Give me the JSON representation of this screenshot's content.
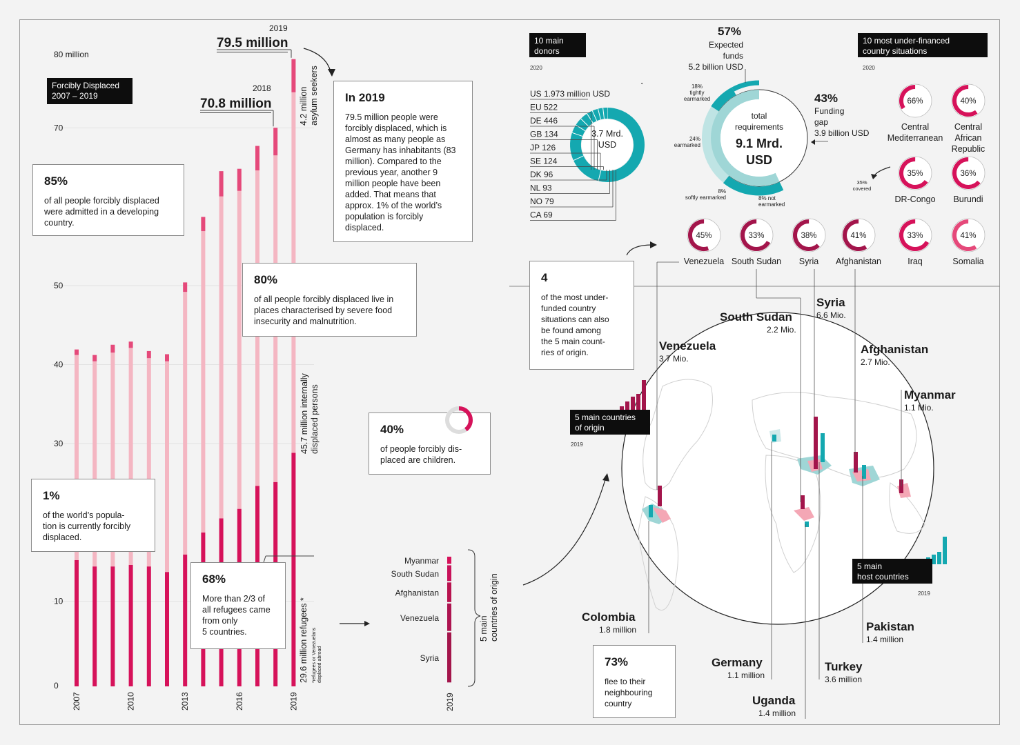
{
  "chart_data": [
    {
      "type": "bar",
      "title": "Forcibly Displaced 2007 – 2019",
      "categories": [
        "2007",
        "2008",
        "2009",
        "2010",
        "2011",
        "2012",
        "2013",
        "2014",
        "2015",
        "2016",
        "2017",
        "2018",
        "2019"
      ],
      "x_tick_labels": [
        "2007",
        "2010",
        "2013",
        "2016",
        "2019"
      ],
      "y_ticks": [
        "0",
        "10",
        "30",
        "40",
        "50",
        "70"
      ],
      "y_top_label": "80  million",
      "ylim": [
        0,
        80
      ],
      "series": [
        {
          "name": "refugees",
          "values": [
            16.0,
            15.2,
            15.2,
            15.4,
            15.2,
            14.5,
            16.7,
            19.5,
            21.3,
            22.5,
            25.4,
            25.9,
            29.6
          ]
        },
        {
          "name": "internally displaced persons",
          "values": [
            26.0,
            26.0,
            27.1,
            27.5,
            26.4,
            26.7,
            33.3,
            38.2,
            40.8,
            40.3,
            40.0,
            41.4,
            45.7
          ]
        },
        {
          "name": "asylum seekers",
          "values": [
            0.7,
            0.8,
            1.0,
            0.8,
            0.9,
            0.9,
            1.2,
            1.8,
            3.2,
            2.8,
            3.1,
            3.5,
            4.2
          ]
        }
      ]
    },
    {
      "type": "bar",
      "title": "5 main countries of origin",
      "categories": [
        "Myanmar",
        "South Sudan",
        "Afghanistan",
        "Venezuela",
        "Syria"
      ],
      "values": [
        1.1,
        2.2,
        2.7,
        3.7,
        6.6
      ],
      "xlabel": "2019"
    },
    {
      "type": "pie",
      "title": "10 main donors",
      "center_label": "3.7 Mrd. USD",
      "categories": [
        "US",
        "EU",
        "DE",
        "GB",
        "JP",
        "SE",
        "DK",
        "NL",
        "NO",
        "CA"
      ],
      "values": [
        1973,
        522,
        446,
        134,
        126,
        124,
        96,
        93,
        79,
        69
      ]
    },
    {
      "type": "pie",
      "title": "total requirements 9.1 Mrd. USD",
      "categories": [
        "18% tightly earmarked",
        "24% earmarked",
        "8% softly earmarked",
        "8% not earmarked",
        "Funding gap"
      ],
      "values": [
        18,
        24,
        8,
        8,
        43
      ]
    },
    {
      "type": "pie",
      "title": "10 most under-financed country situations",
      "categories": [
        "Central Mediterranean",
        "Central African Republic",
        "DR-Congo",
        "Burundi",
        "Venezuela",
        "South Sudan",
        "Syria",
        "Afghanistan",
        "Iraq",
        "Somalia"
      ],
      "values": [
        66,
        40,
        35,
        36,
        45,
        33,
        38,
        41,
        33,
        41
      ]
    }
  ],
  "colors": {
    "refugees": "#d6125a",
    "idp": "#f4b6c2",
    "asylum": "#e5497a",
    "teal": "#14a8b0",
    "teal_light": "#9fd6d6",
    "dark": "#0d0d0d",
    "maroon": "#a3154b",
    "pink_map": "#f4a7b5"
  },
  "left": {
    "title_tag": "Forcibly Displaced\n2007 – 2019",
    "y80": "80  million",
    "y_labels": [
      "70",
      "50",
      "40",
      "30",
      "10",
      "0"
    ],
    "x_labels": [
      "2007",
      "2010",
      "2013",
      "2016",
      "2019"
    ],
    "y2019": "2019",
    "total_2019": "79.5 million",
    "y2018": "2018",
    "total_2018": "70.8 million",
    "asylum_label": "4.2  million\nasylum seekers",
    "idp_label": "45.7 million internally\ndisplaced persons",
    "ref_label": "29.6 million refugees *",
    "ref_note": "*refugees or Venezuelans\ndisplaced abroad",
    "box85_big": "85%",
    "box85_txt": "of all people forcibly displaced were admitted in a developing country.",
    "box1_big": "1%",
    "box1_txt": "of the world’s popula-\ntion is currently forcibly\ndisplaced.",
    "box68_big": "68%",
    "box68_txt": "More than 2/3 of\nall refugees came\nfrom only\n5 countries.",
    "box80_big": "80%",
    "box80_txt": "of all people forcibly displaced live in places characterised by severe food insecurity and malnutrition.",
    "box2019_big": "In 2019",
    "box2019_txt": "79.5 million people were forcibly displaced, which is almost as many people as Germany has inhabitants (83 million). Compared to the previous year, another 9 million people have been added. That means that approx. 1% of the world’s population is forcibly displaced.",
    "box40_big": "40%",
    "box40_txt": "of people forcibly dis-\nplaced are children."
  },
  "origin": {
    "countries": [
      "Myanmar",
      "South Sudan",
      "Afghanistan",
      "Venezuela",
      "Syria"
    ],
    "year": "2019",
    "side_label": "5 main\ncountries of origin"
  },
  "donors": {
    "tag": "10 main\ndonors",
    "year": "2020",
    "center": "3.7 Mrd.\nUSD",
    "items": [
      "US 1.973 million USD",
      "EU 522",
      "DE 446",
      "GB 134",
      "JP 126",
      "SE 124",
      "DK 96",
      "NL 93",
      "NO 79",
      "CA 69"
    ]
  },
  "funding": {
    "pct57": "57%",
    "expected": "Expected\nfunds\n5.2 billion USD",
    "center_small": "total\nrequirements",
    "center_big": "9.1 Mrd.\nUSD",
    "pct43": "43%",
    "gap": "Funding\ngap\n3.9 billion USD",
    "tight": "18%\ntightly\nearmarked",
    "earm": "24%\nearmarked",
    "soft": "8%\nsoftly earmarked",
    "notearm": "8% not\nearmarked"
  },
  "under": {
    "tag": "10 most under-financed\ncountry situations",
    "year": "2020",
    "covered": "35%\ncovered",
    "items": [
      {
        "pct": "66%",
        "name": "Central\nMediterranean"
      },
      {
        "pct": "40%",
        "name": "Central\nAfrican\nRepublic"
      },
      {
        "pct": "35%",
        "name": "DR-Congo"
      },
      {
        "pct": "36%",
        "name": "Burundi"
      },
      {
        "pct": "45%",
        "name": "Venezuela"
      },
      {
        "pct": "33%",
        "name": "South Sudan"
      },
      {
        "pct": "38%",
        "name": "Syria"
      },
      {
        "pct": "41%",
        "name": "Afghanistan"
      },
      {
        "pct": "33%",
        "name": "Iraq"
      },
      {
        "pct": "41%",
        "name": "Somalia"
      }
    ]
  },
  "map": {
    "box4_big": "4",
    "box4_txt": "of the most under-\nfunded country\nsituations can also\nbe found among\nthe 5 main count-\nries of origin.",
    "origin_tag": "5 main countries\nof origin",
    "origin_year": "2019",
    "host_tag": "5 main\nhost countries",
    "host_year": "2019",
    "box73_big": "73%",
    "box73_txt": "flee to their\nneighbouring\ncountry",
    "syria": "Syria",
    "syria_v": "6.6 Mio.",
    "ssudan": "South Sudan",
    "ssudan_v": "2.2 Mio.",
    "venezuela": "Venezuela",
    "venezuela_v": "3.7 Mio.",
    "afghanistan": "Afghanistan",
    "afghanistan_v": "2.7 Mio.",
    "myanmar": "Myanmar",
    "myanmar_v": "1.1 Mio.",
    "colombia": "Colombia",
    "colombia_v": "1.8 million",
    "germany": "Germany",
    "germany_v": "1.1 million",
    "turkey": "Turkey",
    "turkey_v": "3.6 million",
    "pakistan": "Pakistan",
    "pakistan_v": "1.4 million",
    "uganda": "Uganda",
    "uganda_v": "1.4 million"
  }
}
